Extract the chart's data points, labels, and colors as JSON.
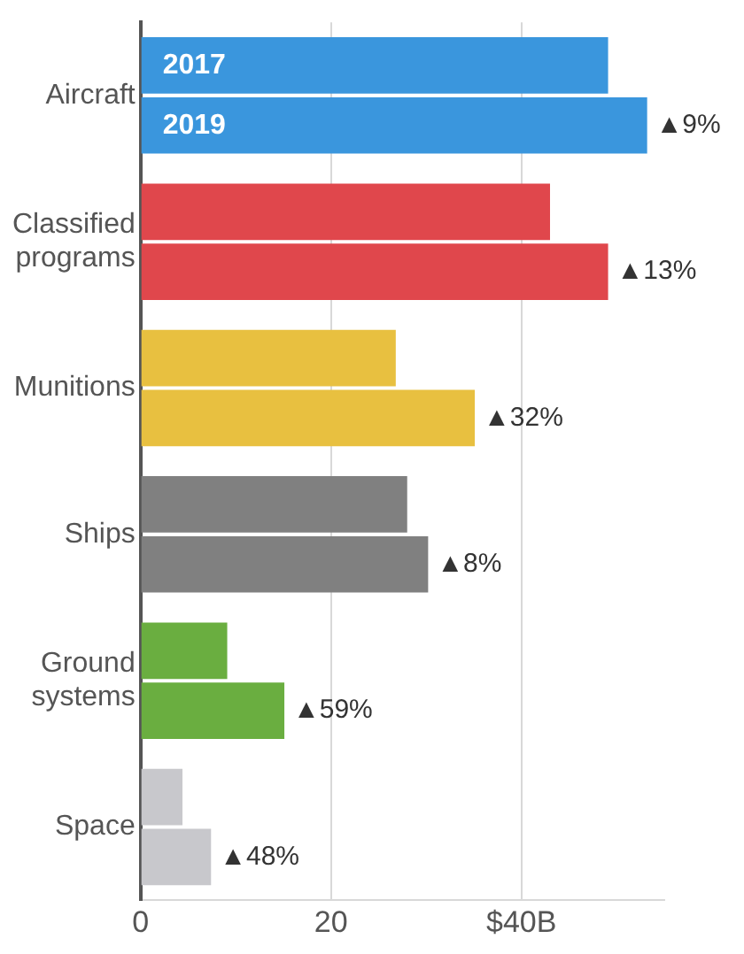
{
  "chart_data": {
    "type": "bar",
    "orientation": "horizontal",
    "categories": [
      "Aircraft",
      "Classified programs",
      "Munitions",
      "Ships",
      "Ground systems",
      "Space"
    ],
    "series": [
      {
        "name": "2017",
        "colors": [
          "#3a96dd",
          "#e0474c",
          "#e8c040",
          "#808080",
          "#6aae40",
          "#c8c8cc"
        ],
        "values": [
          49.1,
          43.0,
          26.8,
          28.0,
          9.1,
          4.4
        ]
      },
      {
        "name": "2019",
        "colors": [
          "#3a96dd",
          "#e0474c",
          "#e8c040",
          "#808080",
          "#6aae40",
          "#c8c8cc"
        ],
        "values": [
          53.2,
          49.1,
          35.1,
          30.2,
          15.1,
          7.4
        ]
      }
    ],
    "annotations": [
      {
        "text": "▲9%",
        "x": 53.2,
        "y": "Aircraft"
      },
      {
        "text": "▲13%",
        "x": 49.1,
        "y": "Classified programs"
      },
      {
        "text": "▲32%",
        "x": 35.1,
        "y": "Munitions"
      },
      {
        "text": "▲8%",
        "x": 30.2,
        "y": "Ships"
      },
      {
        "text": "▲59%",
        "x": 15.1,
        "y": "Ground systems"
      },
      {
        "text": "▲48%",
        "x": 7.4,
        "y": "Space"
      }
    ],
    "xlim": [
      0,
      55
    ],
    "xticks": [
      0,
      20,
      {
        "value": 40,
        "label": "$40B"
      }
    ],
    "grid": "x",
    "legend": false
  }
}
